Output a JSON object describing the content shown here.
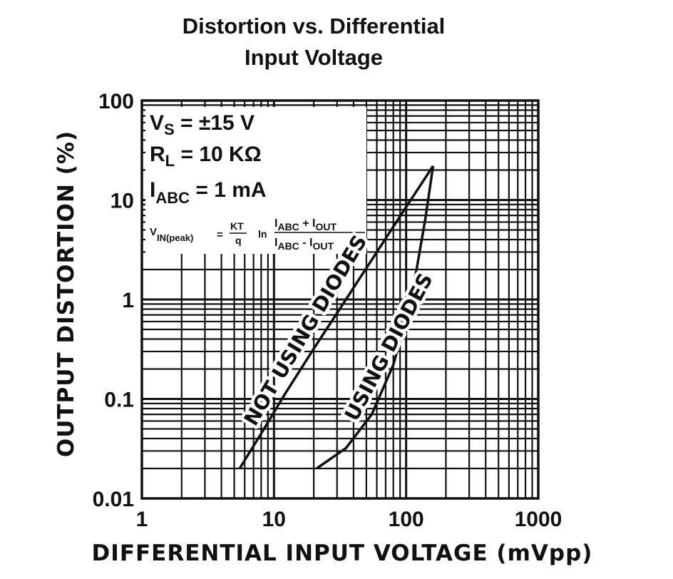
{
  "chart_data": {
    "type": "line",
    "title_line1": "Distortion vs. Differential",
    "title_line2": "Input Voltage",
    "xlabel": "DIFFERENTIAL INPUT VOLTAGE (mVpp)",
    "ylabel": "OUTPUT DISTORTION (%)",
    "x_scale": "log",
    "y_scale": "log",
    "xlim": [
      1,
      1000
    ],
    "ylim": [
      0.01,
      100
    ],
    "x_ticks": [
      "1",
      "10",
      "100",
      "1000"
    ],
    "y_ticks": [
      "0.01",
      "0.1",
      "1",
      "10",
      "100"
    ],
    "grid": true,
    "series": [
      {
        "name": "NOT USING DIODES",
        "x": [
          5.5,
          8,
          12,
          20,
          35,
          60,
          100,
          160
        ],
        "y": [
          0.02,
          0.045,
          0.11,
          0.32,
          1.0,
          3.0,
          8.5,
          22
        ]
      },
      {
        "name": "USING DIODES",
        "x": [
          21,
          35,
          55,
          80,
          100,
          120,
          140,
          160
        ],
        "y": [
          0.02,
          0.032,
          0.07,
          0.22,
          0.65,
          2.0,
          6.5,
          22
        ]
      }
    ],
    "annotations": {
      "vs": {
        "main": "V",
        "sub": "S",
        "rest": " = ±15 V"
      },
      "rl": {
        "main": "R",
        "sub": "L",
        "rest": " = 10 KΩ"
      },
      "iabc": {
        "main": "I",
        "sub": "ABC",
        "rest": " = 1 mA"
      },
      "formula": {
        "lhs": "V",
        "lhs_sub": "IN(peak)",
        "eq": "=",
        "kt": "KT",
        "q": "q",
        "ln": "ln",
        "num": "I",
        "num_sub1": "ABC",
        "num_mid": " + I",
        "num_sub2": "OUT",
        "den": "I",
        "den_sub1": "ABC",
        "den_mid": " - I",
        "den_sub2": "OUT"
      }
    }
  }
}
